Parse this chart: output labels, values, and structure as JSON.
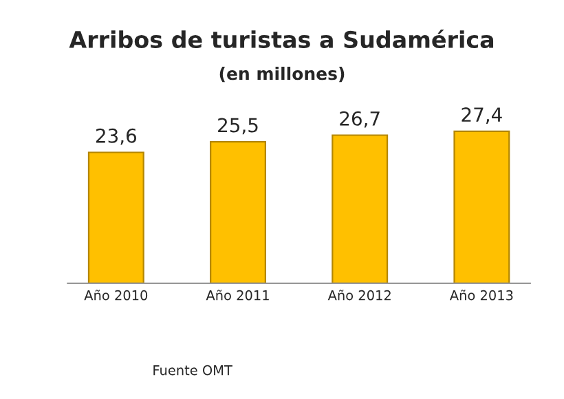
{
  "chart_data": {
    "type": "bar",
    "title": "Arribos de turistas a Sudamérica",
    "subtitle": "(en millones)",
    "categories": [
      "Año 2010",
      "Año 2011",
      "Año 2012",
      "Año 2013"
    ],
    "values": [
      23.6,
      25.5,
      26.7,
      27.4
    ],
    "value_labels": [
      "23,6",
      "25,5",
      "26,7",
      "27,4"
    ],
    "color": "#ffc000",
    "annotations": [
      "Fuente OMT"
    ],
    "grid": false,
    "legend": false,
    "tick_labels": "x"
  }
}
